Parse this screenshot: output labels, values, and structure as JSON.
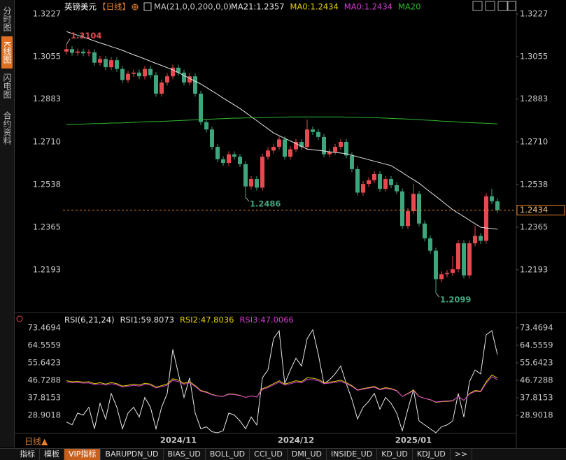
{
  "sidebar": [
    "分时图",
    "K线图",
    "闪电图",
    "合约资料"
  ],
  "header": {
    "symbol": "英镑美元",
    "period": "【日线】",
    "indicator": "MA(21,0,0,200,0,0)"
  },
  "chart_data": [
    {
      "type": "candlestick",
      "categories": [
        null,
        null,
        null,
        null,
        null,
        null,
        null,
        null,
        null,
        null,
        null,
        null,
        null,
        null,
        null,
        null,
        null,
        null,
        null,
        null,
        "2024/11",
        null,
        null,
        null,
        null,
        null,
        null,
        null,
        null,
        null,
        null,
        null,
        null,
        null,
        null,
        null,
        null,
        null,
        null,
        null,
        null,
        "2024/12",
        null,
        null,
        null,
        null,
        null,
        null,
        null,
        null,
        null,
        null,
        null,
        null,
        null,
        null,
        null,
        null,
        null,
        null,
        null,
        null,
        "2025/01",
        null,
        null,
        null,
        null,
        null,
        null,
        null,
        null,
        null,
        null,
        null,
        null,
        null,
        null,
        null
      ],
      "open": [
        1.3075,
        1.3085,
        1.307,
        1.3075,
        1.3068,
        1.3072,
        1.303,
        1.3045,
        1.3012,
        1.304,
        1.3005,
        1.296,
        1.2985,
        1.299,
        1.2975,
        1.3005,
        1.298,
        1.2905,
        1.295,
        1.2975,
        1.301,
        1.299,
        1.295,
        1.2975,
        1.2905,
        1.279,
        1.276,
        1.269,
        1.264,
        1.2625,
        1.266,
        1.265,
        1.262,
        1.253,
        1.256,
        1.2525,
        1.265,
        1.2675,
        1.269,
        1.272,
        1.265,
        1.268,
        1.271,
        1.269,
        1.276,
        1.275,
        1.273,
        1.266,
        1.267,
        1.269,
        1.271,
        1.2655,
        1.26,
        1.2505,
        1.254,
        1.2555,
        1.258,
        1.252,
        1.256,
        1.2535,
        1.251,
        1.237,
        1.243,
        1.25,
        1.238,
        1.232,
        1.227,
        1.2155,
        1.2175,
        1.218,
        1.2195,
        1.23,
        1.217,
        1.23,
        1.233,
        1.231,
        1.249,
        1.247
      ],
      "high": [
        1.3104,
        1.3097,
        1.3087,
        1.3087,
        1.3084,
        1.3084,
        1.3057,
        1.3057,
        1.3052,
        1.3052,
        1.3017,
        1.2997,
        1.3002,
        1.3002,
        1.3017,
        1.3017,
        1.2992,
        1.2962,
        1.2987,
        1.3022,
        1.3022,
        1.3002,
        1.2987,
        1.2987,
        1.2917,
        1.2802,
        1.2772,
        1.2702,
        1.2652,
        1.2672,
        1.2672,
        1.2662,
        1.2632,
        1.2572,
        1.2572,
        1.2662,
        1.2687,
        1.2702,
        1.2732,
        1.2732,
        1.2692,
        1.2722,
        1.2722,
        1.28,
        1.2772,
        1.2762,
        1.2742,
        1.2682,
        1.2702,
        1.2722,
        1.2722,
        1.2667,
        1.2612,
        1.2552,
        1.2567,
        1.2592,
        1.2592,
        1.2572,
        1.2572,
        1.2547,
        1.2522,
        1.2442,
        1.254,
        1.2512,
        1.2392,
        1.2332,
        1.2282,
        1.2187,
        1.2192,
        1.225,
        1.2312,
        1.2312,
        1.2312,
        1.237,
        1.2342,
        1.2502,
        1.252,
        1.2482
      ],
      "low": [
        1.3063,
        1.3058,
        1.3058,
        1.3056,
        1.3056,
        1.3018,
        1.3018,
        1.3,
        1.3,
        1.2993,
        1.2948,
        1.2948,
        1.2973,
        1.2963,
        1.2963,
        1.2968,
        1.2893,
        1.2893,
        1.2938,
        1.2963,
        1.2978,
        1.2938,
        1.2938,
        1.2893,
        1.2778,
        1.2748,
        1.2678,
        1.2628,
        1.2613,
        1.2613,
        1.2638,
        1.2608,
        1.2486,
        1.2518,
        1.2513,
        1.2513,
        1.2638,
        1.2663,
        1.2678,
        1.2638,
        1.2638,
        1.2668,
        1.2678,
        1.2678,
        1.2738,
        1.2718,
        1.2648,
        1.2648,
        1.2658,
        1.2678,
        1.2643,
        1.2588,
        1.2493,
        1.2493,
        1.2528,
        1.2543,
        1.2508,
        1.2508,
        1.2523,
        1.2498,
        1.2358,
        1.2358,
        1.2418,
        1.2368,
        1.2308,
        1.2258,
        1.2099,
        1.2143,
        1.2163,
        1.2168,
        1.2183,
        1.2158,
        1.2158,
        1.2288,
        1.2298,
        1.2298,
        1.2458,
        1.2422
      ],
      "close": [
        1.3085,
        1.307,
        1.3075,
        1.3068,
        1.3072,
        1.303,
        1.3045,
        1.3012,
        1.304,
        1.3005,
        1.296,
        1.2985,
        1.299,
        1.2975,
        1.3005,
        1.298,
        1.2905,
        1.295,
        1.2975,
        1.301,
        1.299,
        1.295,
        1.2975,
        1.2905,
        1.279,
        1.276,
        1.269,
        1.264,
        1.2625,
        1.266,
        1.265,
        1.262,
        1.253,
        1.256,
        1.2525,
        1.265,
        1.2675,
        1.269,
        1.272,
        1.265,
        1.268,
        1.271,
        1.269,
        1.276,
        1.275,
        1.273,
        1.266,
        1.267,
        1.269,
        1.271,
        1.2655,
        1.26,
        1.2505,
        1.254,
        1.2555,
        1.258,
        1.252,
        1.256,
        1.2535,
        1.251,
        1.237,
        1.243,
        1.25,
        1.238,
        1.232,
        1.227,
        1.2155,
        1.2175,
        1.218,
        1.2195,
        1.23,
        1.217,
        1.23,
        1.233,
        1.231,
        1.249,
        1.247,
        1.2434
      ],
      "up_color": "#e8494f",
      "down_color": "#3ea57c",
      "series": [
        {
          "color": "#e6e6e6",
          "values": [
            1.3156,
            1.3148,
            1.3141,
            1.3133,
            1.3126,
            1.3118,
            1.311,
            1.3103,
            1.3095,
            1.3088,
            1.308,
            1.3071,
            1.3062,
            1.3054,
            1.3045,
            1.3036,
            1.3027,
            1.3019,
            1.301,
            1.3001,
            1.299,
            1.2978,
            1.2967,
            1.2955,
            1.2944,
            1.293,
            1.2916,
            1.2902,
            1.2887,
            1.2873,
            1.2859,
            1.2845,
            1.2829,
            1.2812,
            1.2796,
            1.2779,
            1.2763,
            1.2746,
            1.2735,
            1.2724,
            1.2714,
            1.2703,
            1.2692,
            1.2681,
            1.2678,
            1.2676,
            1.2673,
            1.267,
            1.2667,
            1.2665,
            1.2662,
            1.2656,
            1.265,
            1.2644,
            1.2638,
            1.2632,
            1.2626,
            1.262,
            1.2614,
            1.26,
            1.2586,
            1.2571,
            1.2557,
            1.2543,
            1.2525,
            1.2507,
            1.249,
            1.2472,
            1.2454,
            1.2436,
            1.2422,
            1.2408,
            1.2393,
            1.2379,
            1.2365,
            1.2362,
            1.236,
            1.2357
          ]
        },
        {
          "color": "#2fb82f",
          "values": [
            1.278,
            1.2781,
            1.2781,
            1.2782,
            1.2783,
            1.2784,
            1.2784,
            1.2785,
            1.2786,
            1.2786,
            1.2787,
            1.2788,
            1.2789,
            1.279,
            1.2791,
            1.2792,
            1.2792,
            1.2793,
            1.2794,
            1.2795,
            1.2796,
            1.2797,
            1.2798,
            1.2799,
            1.28,
            1.2801,
            1.2802,
            1.2803,
            1.2804,
            1.2805,
            1.2806,
            1.2806,
            1.2807,
            1.2807,
            1.2808,
            1.2808,
            1.2809,
            1.2809,
            1.281,
            1.281,
            1.2811,
            1.2811,
            1.2811,
            1.2811,
            1.2811,
            1.2811,
            1.2811,
            1.2811,
            1.2811,
            1.2811,
            1.281,
            1.281,
            1.2809,
            1.2809,
            1.2808,
            1.2808,
            1.2807,
            1.2806,
            1.2805,
            1.2804,
            1.2803,
            1.2802,
            1.2801,
            1.28,
            1.2798,
            1.2797,
            1.2796,
            1.2794,
            1.2793,
            1.2792,
            1.279,
            1.2789,
            1.2788,
            1.2787,
            1.2786,
            1.2785,
            1.2784,
            1.2783
          ]
        }
      ],
      "legend": [
        {
          "text": "MA21:1.2357",
          "color": "#e6e6e6"
        },
        {
          "text": "MA0:1.2434",
          "color": "#e6d200"
        },
        {
          "text": "MA0:1.2434",
          "color": "#d23cd2"
        },
        {
          "text": "MA20",
          "color": "#2fb82f"
        }
      ],
      "annotations": [
        {
          "path": "high",
          "index": 0,
          "color": "#e8494f"
        },
        {
          "path": "low",
          "index": 32,
          "color": "#3ea57c"
        },
        {
          "path": "low",
          "index": 66,
          "color": "#3ea57c"
        }
      ],
      "price_line_color": "#e8802a",
      "ylim": [
        1.2026,
        1.3227
      ],
      "yticks": [
        1.2193,
        1.2365,
        1.2538,
        {
          "value": 1.271,
          "label": "1.2710"
        },
        1.2883,
        1.3055,
        1.3227
      ],
      "grid": false
    },
    {
      "type": "line",
      "legend": [
        {
          "text": "RSI(6,21,24)",
          "color": "#e6e6e6"
        },
        {
          "text": "RSI1:59.8073",
          "color": "#e6e6e6"
        },
        {
          "text": "RSI2:47.8036",
          "color": "#e6d200"
        },
        {
          "text": "RSI3:47.0066",
          "color": "#d23cd2"
        }
      ],
      "series": [
        {
          "color": "#e6e6e6",
          "values": [
            25.5,
            24.0,
            30.0,
            29.0,
            33.0,
            22.0,
            35.0,
            27.0,
            40.0,
            33.0,
            22.0,
            30.0,
            33.0,
            28.0,
            38.0,
            33.0,
            22.0,
            33.0,
            40.0,
            62.5,
            50.0,
            38.0,
            48.0,
            30.0,
            22.0,
            23.0,
            20.5,
            20.0,
            21.0,
            30.0,
            29.0,
            26.0,
            22.0,
            28.0,
            24.0,
            48.0,
            52.0,
            68.0,
            72.0,
            45.0,
            52.0,
            58.0,
            54.0,
            68.0,
            72.5,
            60.0,
            45.0,
            47.0,
            50.0,
            54.0,
            45.0,
            37.0,
            27.0,
            33.0,
            36.0,
            40.0,
            32.0,
            38.0,
            35.0,
            30.0,
            21.0,
            32.0,
            42.0,
            26.0,
            24.0,
            22.0,
            20.0,
            23.0,
            24.0,
            26.0,
            40.0,
            28.0,
            46.0,
            52.0,
            50.0,
            70.0,
            72.0,
            59.8073
          ]
        },
        {
          "color": "#e6d200",
          "values": [
            46.5,
            46.0,
            46.2,
            45.8,
            46.0,
            45.0,
            45.5,
            44.8,
            45.6,
            45.0,
            43.8,
            44.2,
            44.8,
            44.3,
            45.2,
            44.8,
            43.2,
            44.0,
            44.8,
            47.5,
            46.8,
            45.2,
            46.0,
            44.0,
            41.5,
            40.8,
            39.5,
            38.8,
            38.6,
            39.8,
            39.6,
            39.0,
            38.0,
            38.8,
            38.2,
            42.5,
            43.5,
            45.0,
            46.5,
            44.8,
            45.6,
            46.5,
            46.0,
            48.0,
            47.8,
            47.2,
            45.5,
            45.8,
            46.2,
            46.8,
            45.5,
            44.0,
            41.8,
            42.5,
            43.0,
            43.6,
            42.2,
            43.0,
            42.5,
            41.5,
            38.5,
            40.0,
            41.8,
            38.5,
            37.5,
            36.8,
            35.5,
            35.8,
            36.0,
            36.2,
            38.5,
            36.5,
            40.0,
            41.5,
            41.2,
            46.0,
            49.5,
            47.8036
          ]
        },
        {
          "color": "#d23cd2",
          "values": [
            45.9,
            45.5,
            45.6,
            45.3,
            45.4,
            44.5,
            44.9,
            44.3,
            45.0,
            44.5,
            43.3,
            43.7,
            44.2,
            43.8,
            44.6,
            44.3,
            42.8,
            43.5,
            44.2,
            46.7,
            46.1,
            44.7,
            45.4,
            43.6,
            41.2,
            40.5,
            39.3,
            38.7,
            38.5,
            39.6,
            39.4,
            38.9,
            38.0,
            38.7,
            38.2,
            42.0,
            43.0,
            44.4,
            45.8,
            44.3,
            45.0,
            45.8,
            45.4,
            47.2,
            47.0,
            46.5,
            45.0,
            45.3,
            45.6,
            46.2,
            45.0,
            43.6,
            41.6,
            42.2,
            42.7,
            43.2,
            41.9,
            42.6,
            42.2,
            41.3,
            38.5,
            39.8,
            41.4,
            38.4,
            37.5,
            36.9,
            35.7,
            36.0,
            36.2,
            36.4,
            38.4,
            36.6,
            39.7,
            41.0,
            40.8,
            45.3,
            48.6,
            47.0066
          ]
        }
      ],
      "ylim": [
        19.63,
        73.4694
      ],
      "yticks": [
        28.9018,
        37.8153,
        46.7288,
        55.6423,
        64.5559,
        73.4694
      ],
      "grid": false
    }
  ],
  "footer": {
    "period_label": "日线▲",
    "tabs": [
      "指标",
      "模板",
      "VIP指标",
      "BARUPDN_UD",
      "BIAS_UD",
      "BOLL_UD",
      "CCI_UD",
      "DMI_UD",
      "INSIDE_UD",
      "KD_UD",
      "KDJ_UD",
      ">>"
    ],
    "active_tab": 2
  }
}
